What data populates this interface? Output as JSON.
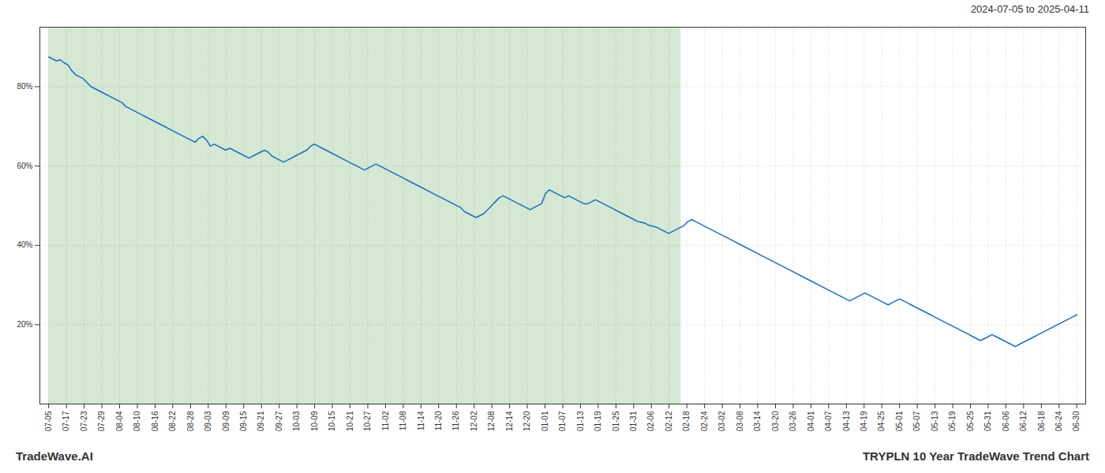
{
  "chart_data": {
    "type": "line",
    "title": "TRYPLN 10 Year TradeWave Trend Chart",
    "subtitle": "2024-07-05 to 2025-04-11",
    "annotations": [
      "TradeWave.AI"
    ],
    "color": "#1a6fba",
    "shade_color": "#d4e8d4",
    "shaded_x": [
      0,
      164.205
    ],
    "grid": true,
    "xlim": [
      -2.302,
      269.302
    ],
    "xticks": [
      {
        "value": 0,
        "label": "07-05"
      },
      {
        "value": 4.603,
        "label": "07-17"
      },
      {
        "value": 9.207,
        "label": "07-23"
      },
      {
        "value": 13.81,
        "label": "07-29"
      },
      {
        "value": 18.414,
        "label": "08-04"
      },
      {
        "value": 23.017,
        "label": "08-10"
      },
      {
        "value": 27.621,
        "label": "08-16"
      },
      {
        "value": 32.224,
        "label": "08-22"
      },
      {
        "value": 36.828,
        "label": "08-28"
      },
      {
        "value": 41.431,
        "label": "09-03"
      },
      {
        "value": 46.034,
        "label": "09-09"
      },
      {
        "value": 50.638,
        "label": "09-15"
      },
      {
        "value": 55.241,
        "label": "09-21"
      },
      {
        "value": 59.845,
        "label": "09-27"
      },
      {
        "value": 64.448,
        "label": "10-03"
      },
      {
        "value": 69.052,
        "label": "10-09"
      },
      {
        "value": 73.655,
        "label": "10-15"
      },
      {
        "value": 78.259,
        "label": "10-21"
      },
      {
        "value": 82.862,
        "label": "10-27"
      },
      {
        "value": 87.466,
        "label": "11-02"
      },
      {
        "value": 92.069,
        "label": "11-08"
      },
      {
        "value": 96.672,
        "label": "11-14"
      },
      {
        "value": 101.276,
        "label": "11-20"
      },
      {
        "value": 105.879,
        "label": "11-26"
      },
      {
        "value": 110.483,
        "label": "12-02"
      },
      {
        "value": 115.086,
        "label": "12-08"
      },
      {
        "value": 119.69,
        "label": "12-14"
      },
      {
        "value": 124.293,
        "label": "12-20"
      },
      {
        "value": 128.897,
        "label": "01-01"
      },
      {
        "value": 133.5,
        "label": "01-07"
      },
      {
        "value": 138.103,
        "label": "01-13"
      },
      {
        "value": 142.707,
        "label": "01-19"
      },
      {
        "value": 147.31,
        "label": "01-25"
      },
      {
        "value": 151.914,
        "label": "01-31"
      },
      {
        "value": 156.517,
        "label": "02-06"
      },
      {
        "value": 161.121,
        "label": "02-12"
      },
      {
        "value": 165.724,
        "label": "02-18"
      },
      {
        "value": 170.328,
        "label": "02-24"
      },
      {
        "value": 174.931,
        "label": "03-02"
      },
      {
        "value": 179.534,
        "label": "03-08"
      },
      {
        "value": 184.138,
        "label": "03-14"
      },
      {
        "value": 188.741,
        "label": "03-20"
      },
      {
        "value": 193.345,
        "label": "03-26"
      },
      {
        "value": 197.948,
        "label": "04-01"
      },
      {
        "value": 202.552,
        "label": "04-07"
      },
      {
        "value": 207.155,
        "label": "04-13"
      },
      {
        "value": 211.759,
        "label": "04-19"
      },
      {
        "value": 216.362,
        "label": "04-25"
      },
      {
        "value": 220.966,
        "label": "05-01"
      },
      {
        "value": 225.569,
        "label": "05-07"
      },
      {
        "value": 230.172,
        "label": "05-13"
      },
      {
        "value": 234.776,
        "label": "05-19"
      },
      {
        "value": 239.379,
        "label": "05-25"
      },
      {
        "value": 243.983,
        "label": "05-31"
      },
      {
        "value": 248.586,
        "label": "06-06"
      },
      {
        "value": 253.19,
        "label": "06-12"
      },
      {
        "value": 257.793,
        "label": "06-18"
      },
      {
        "value": 262.397,
        "label": "06-24"
      },
      {
        "value": 267,
        "label": "06-30"
      }
    ],
    "ylim": [
      0,
      95
    ],
    "yticks": [
      {
        "value": 20,
        "label": "20%"
      },
      {
        "value": 40,
        "label": "40%"
      },
      {
        "value": 60,
        "label": "60%"
      },
      {
        "value": 80,
        "label": "80%"
      }
    ],
    "values": [
      87.5,
      87.0,
      86.5,
      86.8,
      86.0,
      85.5,
      84.0,
      83.0,
      82.5,
      82.0,
      81.0,
      80.0,
      79.5,
      79.0,
      78.5,
      78.0,
      77.5,
      77.0,
      76.5,
      76.0,
      75.0,
      74.5,
      74.0,
      73.5,
      73.0,
      72.5,
      72.0,
      71.5,
      71.0,
      70.5,
      70.0,
      69.5,
      69.0,
      68.5,
      68.0,
      67.5,
      67.0,
      66.5,
      66.0,
      67.0,
      67.5,
      66.5,
      65.0,
      65.5,
      65.0,
      64.5,
      64.0,
      64.5,
      64.0,
      63.5,
      63.0,
      62.5,
      62.0,
      62.5,
      63.0,
      63.5,
      64.0,
      63.5,
      62.5,
      62.0,
      61.5,
      61.0,
      61.5,
      62.0,
      62.5,
      63.0,
      63.5,
      64.0,
      65.0,
      65.5,
      65.0,
      64.5,
      64.0,
      63.5,
      63.0,
      62.5,
      62.0,
      61.5,
      61.0,
      60.5,
      60.0,
      59.5,
      59.0,
      59.5,
      60.0,
      60.5,
      60.0,
      59.5,
      59.0,
      58.5,
      58.0,
      57.5,
      57.0,
      56.5,
      56.0,
      55.5,
      55.0,
      54.5,
      54.0,
      53.5,
      53.0,
      52.5,
      52.0,
      51.5,
      51.0,
      50.5,
      50.0,
      49.5,
      48.5,
      48.0,
      47.5,
      47.0,
      47.5,
      48.0,
      49.0,
      50.0,
      51.0,
      52.0,
      52.5,
      52.0,
      51.5,
      51.0,
      50.5,
      50.0,
      49.5,
      49.0,
      49.5,
      50.0,
      50.5,
      53.0,
      54.0,
      53.5,
      53.0,
      52.5,
      52.0,
      52.5,
      52.0,
      51.5,
      51.0,
      50.5,
      50.5,
      51.0,
      51.5,
      51.0,
      50.5,
      50.0,
      49.5,
      49.0,
      48.5,
      48.0,
      47.5,
      47.0,
      46.5,
      46.0,
      45.8,
      45.5,
      45.0,
      44.8,
      44.5,
      44.0,
      43.5,
      43.0,
      43.5,
      44.0,
      44.5,
      45.0,
      46.0,
      46.5,
      46.0,
      45.5,
      45.0,
      44.5,
      44.0,
      43.5,
      43.0,
      42.5,
      42.0,
      41.5,
      41.0,
      40.5,
      40.0,
      39.5,
      39.0,
      38.5,
      38.0,
      37.5,
      37.0,
      36.5,
      36.0,
      35.5,
      35.0,
      34.5,
      34.0,
      33.5,
      33.0,
      32.5,
      32.0,
      31.5,
      31.0,
      30.5,
      30.0,
      29.5,
      29.0,
      28.5,
      28.0,
      27.5,
      27.0,
      26.5,
      26.0,
      26.5,
      27.0,
      27.5,
      28.0,
      27.5,
      27.0,
      26.5,
      26.0,
      25.5,
      25.0,
      25.5,
      26.0,
      26.5,
      26.0,
      25.5,
      25.0,
      24.5,
      24.0,
      23.5,
      23.0,
      22.5,
      22.0,
      21.5,
      21.0,
      20.5,
      20.0,
      19.5,
      19.0,
      18.5,
      18.0,
      17.5,
      17.0,
      16.5,
      16.0,
      16.5,
      17.0,
      17.5,
      17.0,
      16.5,
      16.0,
      15.5,
      15.0,
      14.5,
      15.0,
      15.5,
      16.0,
      16.5,
      17.0,
      17.5,
      18.0,
      18.5,
      19.0,
      19.5,
      20.0,
      20.5,
      21.0,
      21.5,
      22.0,
      22.5
    ]
  }
}
